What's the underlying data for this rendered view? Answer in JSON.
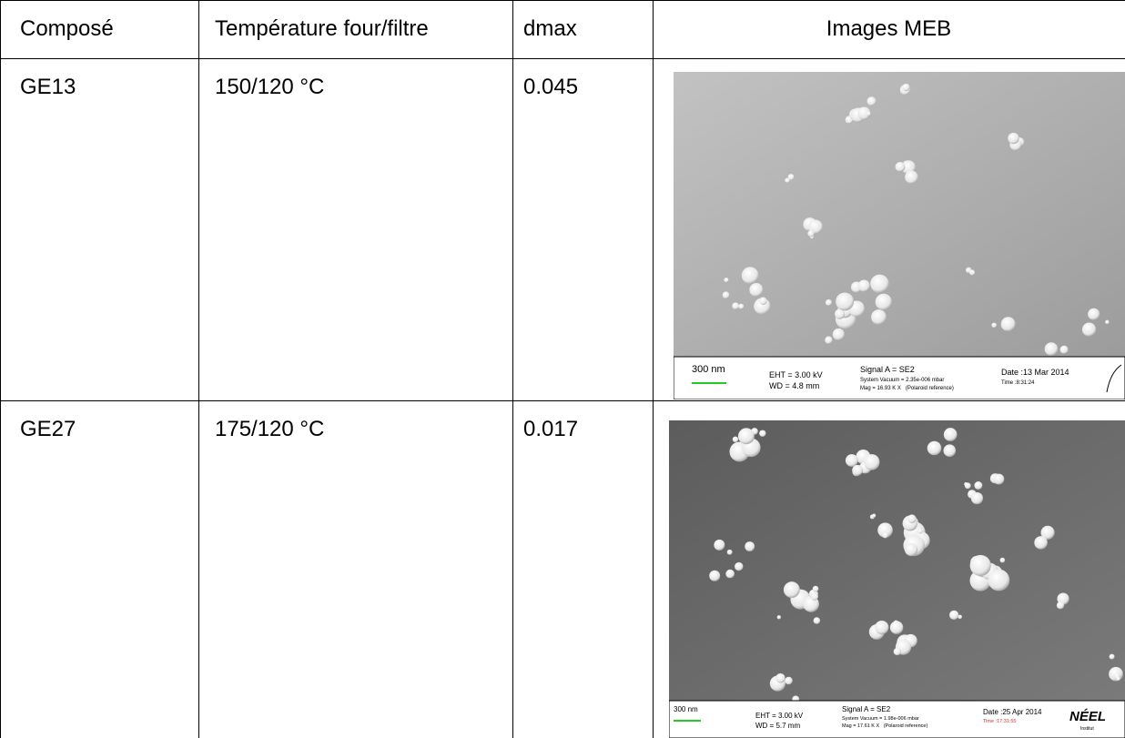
{
  "table": {
    "headers": [
      "Composé",
      "Température four/filtre",
      "dmax",
      "Images MEB"
    ],
    "rows": [
      {
        "compound": "GE13",
        "temperature": "150/120 °C",
        "dmax": "0.045",
        "image": {
          "scale": "300 nm",
          "eht": "EHT = 3.00 kV",
          "wd": "WD = 4.8 mm",
          "signal": "Signal A = SE2",
          "vacuum": "System Vacuum = 2.35e-006 mbar",
          "mag": "Mag = 16.93 K X   (Polaroid reference)",
          "date": "Date :13 Mar 2014",
          "time": "Time :8:31:24"
        }
      },
      {
        "compound": "GE27",
        "temperature": "175/120 °C",
        "dmax": "0.017",
        "image": {
          "scale": "300 nm",
          "eht": "EHT = 3.00 kV",
          "wd": "WD = 5.7 mm",
          "signal": "Signal A = SE2",
          "vacuum": "System Vacuum = 1.98e-006 mbar",
          "mag": "Mag = 17.61 K X   (Polaroid reference)",
          "date": "Date :25 Apr 2014",
          "time": "Time :17:31:55",
          "logo": "NÉEL",
          "logo_sub": "Institut"
        }
      }
    ]
  }
}
